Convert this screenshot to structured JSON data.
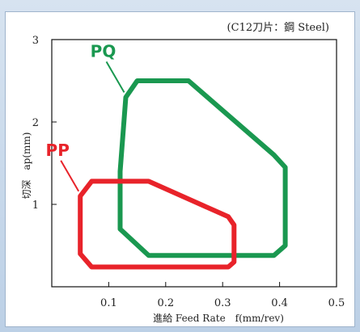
{
  "chart_data": {
    "type": "area",
    "annotation": "(C12刀片：鋼 Steel)",
    "xlabel": "進給 Feed Rate　f(mm/rev)",
    "ylabel": "切深　ap(mm)",
    "xlim": [
      0,
      0.5
    ],
    "ylim": [
      0,
      3
    ],
    "x_ticks": [
      "0.1",
      "0.2",
      "0.3",
      "0.4",
      "0.5"
    ],
    "y_ticks": [
      "1",
      "2",
      "3"
    ],
    "grid": false,
    "series": [
      {
        "name": "PQ",
        "color": "#1a9850",
        "points": [
          [
            0.15,
            2.5
          ],
          [
            0.24,
            2.5
          ],
          [
            0.39,
            1.6
          ],
          [
            0.41,
            1.45
          ],
          [
            0.41,
            0.5
          ],
          [
            0.39,
            0.38
          ],
          [
            0.17,
            0.38
          ],
          [
            0.12,
            0.7
          ],
          [
            0.12,
            1.4
          ],
          [
            0.13,
            2.3
          ]
        ]
      },
      {
        "name": "PP",
        "color": "#e8232a",
        "points": [
          [
            0.07,
            1.28
          ],
          [
            0.17,
            1.28
          ],
          [
            0.31,
            0.85
          ],
          [
            0.32,
            0.75
          ],
          [
            0.32,
            0.3
          ],
          [
            0.31,
            0.24
          ],
          [
            0.07,
            0.24
          ],
          [
            0.05,
            0.4
          ],
          [
            0.05,
            1.1
          ]
        ]
      }
    ]
  }
}
